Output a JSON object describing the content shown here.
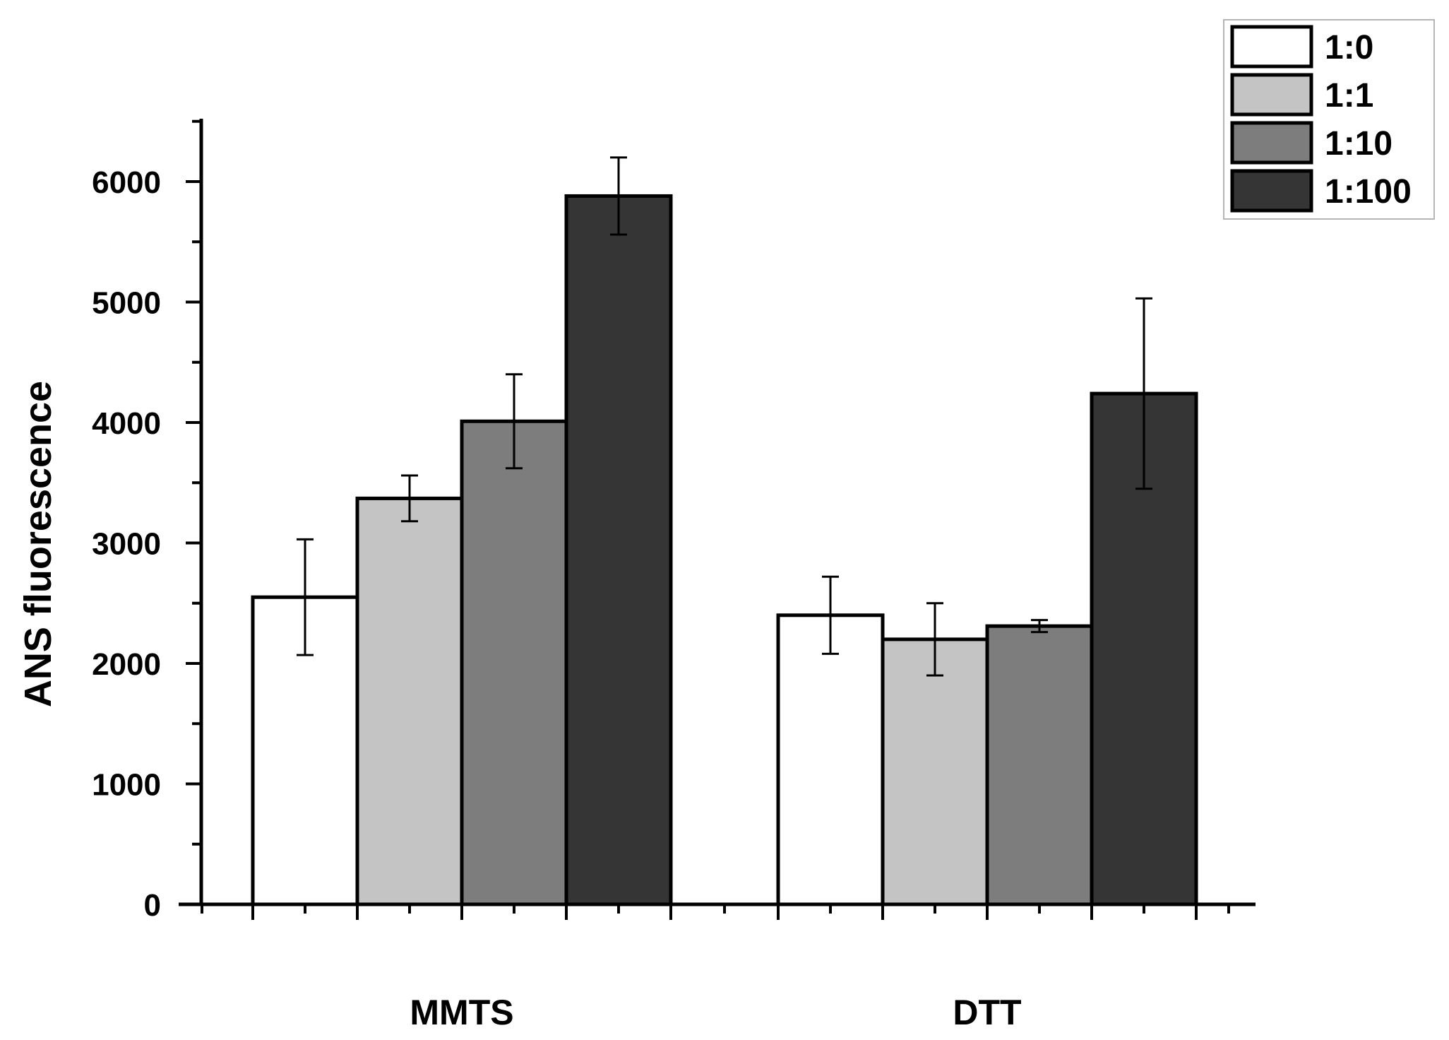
{
  "chart_data": {
    "type": "bar",
    "title": "",
    "xlabel": "",
    "ylabel": "ANS fluorescence",
    "ylim": [
      0,
      6500
    ],
    "y_ticks": [
      "0",
      "1000",
      "2000",
      "3000",
      "4000",
      "5000",
      "6000"
    ],
    "y_tick_values": [
      0,
      1000,
      2000,
      3000,
      4000,
      5000,
      6000
    ],
    "categories": [
      "MMTS",
      "DTT"
    ],
    "series": [
      {
        "name": "1:0",
        "color": "#ffffff",
        "values": [
          2550,
          2400
        ],
        "errors": [
          480,
          320
        ]
      },
      {
        "name": "1:1",
        "color": "#c4c4c4",
        "values": [
          3370,
          2200
        ],
        "errors": [
          190,
          300
        ]
      },
      {
        "name": "1:10",
        "color": "#7d7d7d",
        "values": [
          4010,
          2310
        ],
        "errors": [
          390,
          50
        ]
      },
      {
        "name": "1:100",
        "color": "#353535",
        "values": [
          5880,
          4240
        ],
        "errors": [
          320,
          790
        ]
      }
    ],
    "legend_position": "top-right",
    "grid": false
  }
}
